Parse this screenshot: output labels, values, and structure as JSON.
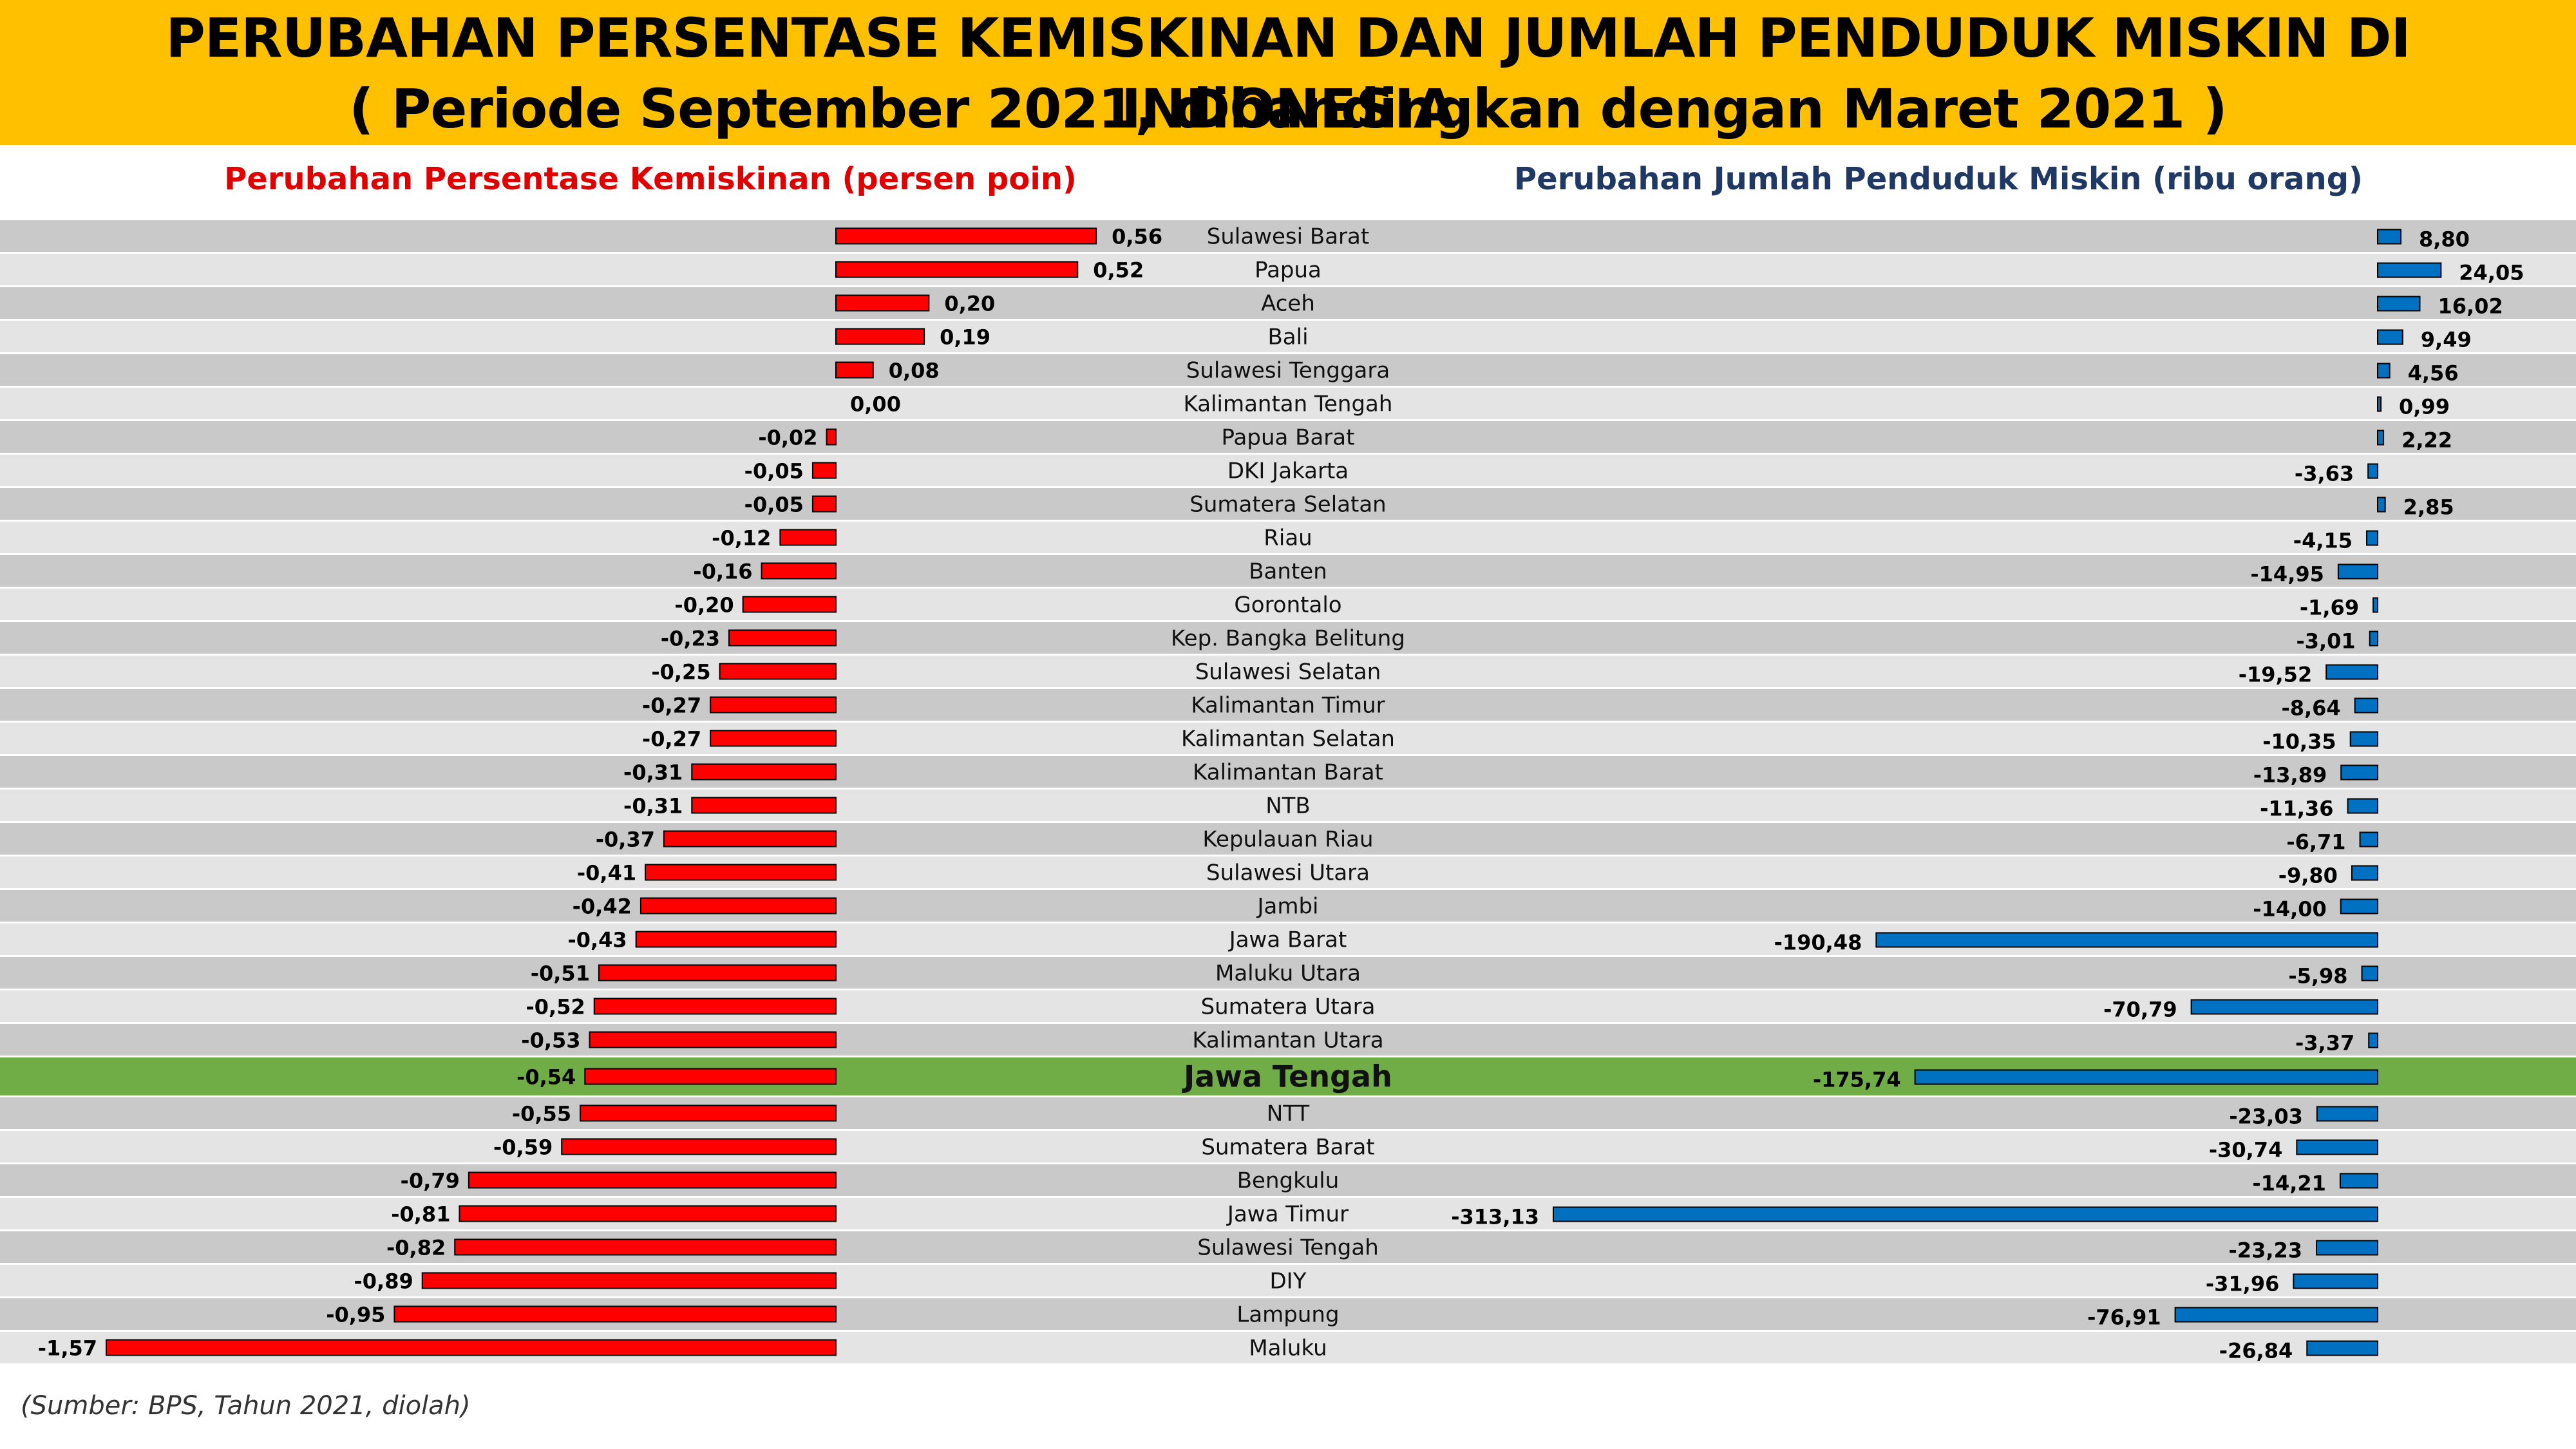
{
  "header": {
    "title": "PERUBAHAN PERSENTASE KEMISKINAN DAN JUMLAH PENDUDUK MISKIN DI INDONESIA",
    "subtitle": "( Periode September 2021, dibandingkan dengan Maret 2021 )"
  },
  "source": "(Sumber: BPS, Tahun 2021, diolah)",
  "colors": {
    "left_bar": "#ff0000",
    "right_bar": "#0070c0",
    "highlight_row": "#70ad47",
    "row_dark": "#c9c9c9",
    "row_light": "#e4e4e4"
  },
  "highlight_province": "Jawa Tengah",
  "chart_data": [
    {
      "type": "bar",
      "orientation": "horizontal",
      "title": "Perubahan Persentase Kemiskinan (persen poin)",
      "categories": [
        "Sulawesi Barat",
        "Papua",
        "Aceh",
        "Bali",
        "Sulawesi Tenggara",
        "Kalimantan Tengah",
        "Papua Barat",
        "DKI Jakarta",
        "Sumatera Selatan",
        "Riau",
        "Banten",
        "Gorontalo",
        "Kep. Bangka Belitung",
        "Sulawesi Selatan",
        "Kalimantan Timur",
        "Kalimantan Selatan",
        "Kalimantan Barat",
        "NTB",
        "Kepulauan Riau",
        "Sulawesi Utara",
        "Jambi",
        "Jawa Barat",
        "Maluku Utara",
        "Sumatera Utara",
        "Kalimantan Utara",
        "Jawa Tengah",
        "NTT",
        "Sumatera Barat",
        "Bengkulu",
        "Jawa Timur",
        "Sulawesi Tengah",
        "DIY",
        "Lampung",
        "Maluku"
      ],
      "values": [
        0.56,
        0.52,
        0.2,
        0.19,
        0.08,
        0.0,
        -0.02,
        -0.05,
        -0.05,
        -0.12,
        -0.16,
        -0.2,
        -0.23,
        -0.25,
        -0.27,
        -0.27,
        -0.31,
        -0.31,
        -0.37,
        -0.41,
        -0.42,
        -0.43,
        -0.51,
        -0.52,
        -0.53,
        -0.54,
        -0.55,
        -0.59,
        -0.79,
        -0.81,
        -0.82,
        -0.89,
        -0.95,
        -1.57
      ],
      "labels": [
        "0,56",
        "0,52",
        "0,20",
        "0,19",
        "0,08",
        "0,00",
        "-0,02",
        "-0,05",
        "-0,05",
        "-0,12",
        "-0,16",
        "-0,20",
        "-0,23",
        "-0,25",
        "-0,27",
        "-0,27",
        "-0,31",
        "-0,31",
        "-0,37",
        "-0,41",
        "-0,42",
        "-0,43",
        "-0,51",
        "-0,52",
        "-0,53",
        "-0,54",
        "-0,55",
        "-0,59",
        "-0,79",
        "-0,81",
        "-0,82",
        "-0,89",
        "-0,95",
        "-1,57"
      ],
      "xlim": [
        -1.6,
        0.6
      ]
    },
    {
      "type": "bar",
      "orientation": "horizontal",
      "title": "Perubahan Jumlah Penduduk Miskin (ribu orang)",
      "categories": [
        "Sulawesi Barat",
        "Papua",
        "Aceh",
        "Bali",
        "Sulawesi Tenggara",
        "Kalimantan Tengah",
        "Papua Barat",
        "DKI Jakarta",
        "Sumatera Selatan",
        "Riau",
        "Banten",
        "Gorontalo",
        "Kep. Bangka Belitung",
        "Sulawesi Selatan",
        "Kalimantan Timur",
        "Kalimantan Selatan",
        "Kalimantan Barat",
        "NTB",
        "Kepulauan Riau",
        "Sulawesi Utara",
        "Jambi",
        "Jawa Barat",
        "Maluku Utara",
        "Sumatera Utara",
        "Kalimantan Utara",
        "Jawa Tengah",
        "NTT",
        "Sumatera Barat",
        "Bengkulu",
        "Jawa Timur",
        "Sulawesi Tengah",
        "DIY",
        "Lampung",
        "Maluku"
      ],
      "values": [
        8.8,
        24.05,
        16.02,
        9.49,
        4.56,
        0.99,
        2.22,
        -3.63,
        2.85,
        -4.15,
        -14.95,
        -1.69,
        -3.01,
        -19.52,
        -8.64,
        -10.35,
        -13.89,
        -11.36,
        -6.71,
        -9.8,
        -14.0,
        -190.48,
        -5.98,
        -70.79,
        -3.37,
        -175.74,
        -23.03,
        -30.74,
        -14.21,
        -313.13,
        -23.23,
        -31.96,
        -76.91,
        -26.84
      ],
      "labels": [
        "8,80",
        "24,05",
        "16,02",
        "9,49",
        "4,56",
        "0,99",
        "2,22",
        "-3,63",
        "2,85",
        "-4,15",
        "-14,95",
        "-1,69",
        "-3,01",
        "-19,52",
        "-8,64",
        "-10,35",
        "-13,89",
        "-11,36",
        "-6,71",
        "-9,80",
        "-14,00",
        "-190,48",
        "-5,98",
        "-70,79",
        "-3,37",
        "-175,74",
        "-23,03",
        "-30,74",
        "-14,21",
        "-313,13",
        "-23,23",
        "-31,96",
        "-76,91",
        "-26,84"
      ],
      "xlim": [
        -320,
        30
      ]
    }
  ]
}
